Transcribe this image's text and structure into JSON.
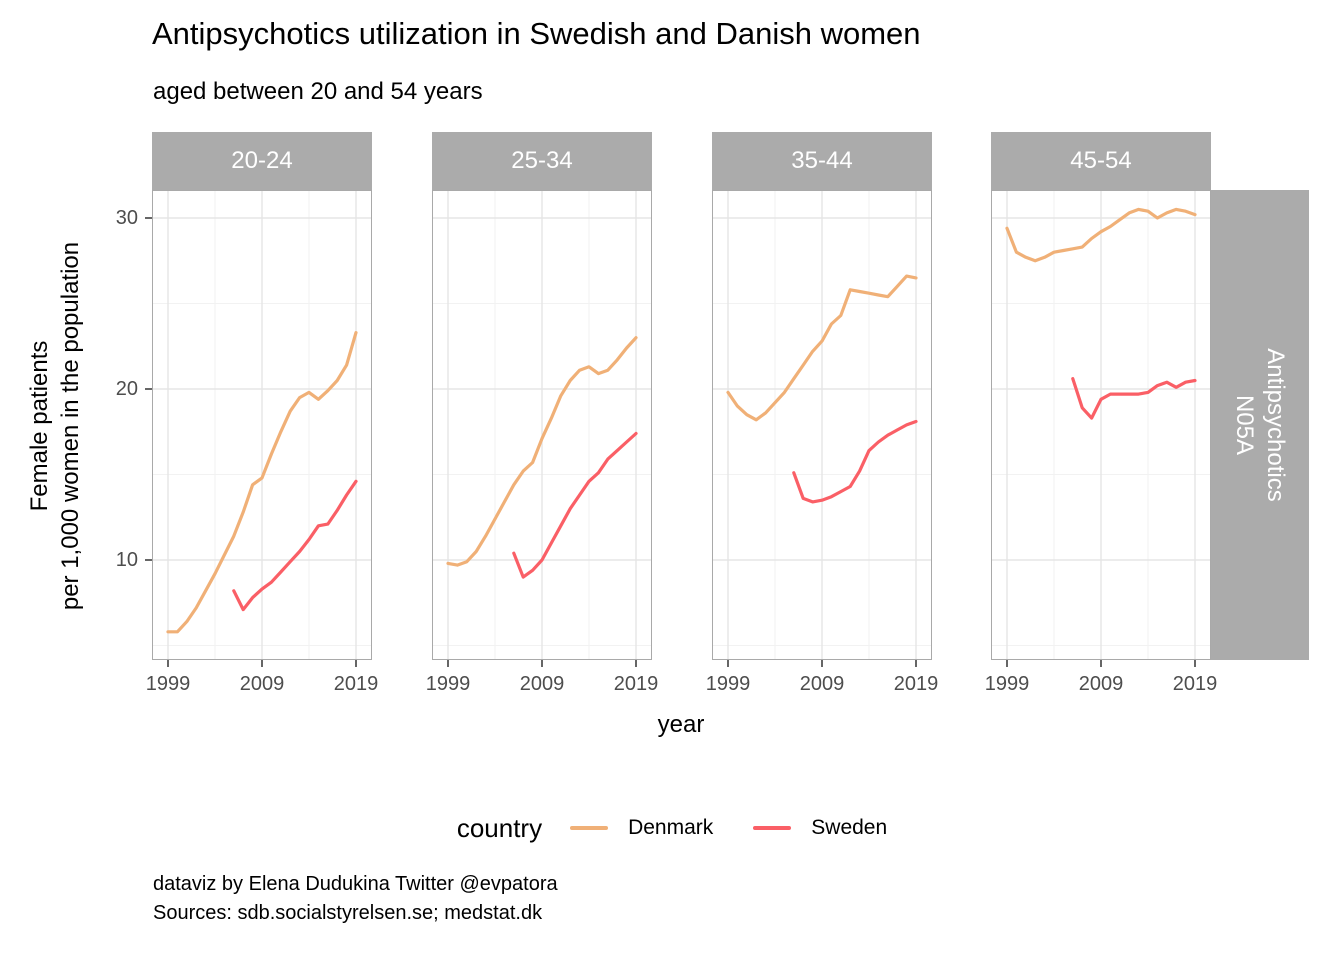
{
  "title": "Antipsychotics utilization in Swedish and Danish women",
  "subtitle": "aged between 20 and 54 years",
  "y_axis_label_line1": "Female patients",
  "y_axis_label_line2": "per 1,000 women in the population",
  "x_axis_label": "year",
  "right_strip": {
    "line1": "Antipsychotics",
    "line2": "N05A"
  },
  "legend": {
    "title": "country",
    "items": [
      {
        "label": "Denmark",
        "color": "#F0B077"
      },
      {
        "label": "Sweden",
        "color": "#FA5F66"
      }
    ]
  },
  "caption_line1": "dataviz by Elena Dudukina Twitter @evpatora",
  "caption_line2": "Sources: sdb.socialstyrelsen.se; medstat.dk",
  "colors": {
    "denmark": "#F0B077",
    "sweden": "#FA5F66",
    "strip_bg": "#ABABAB",
    "strip_text": "#FFFFFF",
    "panel_border": "#A9A9A9",
    "grid_major": "#E5E5E5",
    "grid_minor": "#F2F2F2",
    "tick_text": "#4D4D4D",
    "tick_mark": "#666666"
  },
  "chart_data": {
    "type": "line",
    "title": "Antipsychotics utilization in Swedish and Danish women aged between 20 and 54 years",
    "xlabel": "year",
    "ylabel": "Female patients per 1,000 women in the population",
    "x_range": [
      1999,
      2019
    ],
    "ylim": [
      4.2,
      31.5
    ],
    "x_major_ticks": [
      1999,
      2009,
      2019
    ],
    "x_minor_ticks": [
      2004,
      2014
    ],
    "y_major_ticks": [
      10,
      20,
      30
    ],
    "y_minor_ticks": [
      5,
      15,
      25
    ],
    "grid": true,
    "legend_position": "bottom",
    "facet_label_right": "Antipsychotics N05A",
    "facets": [
      {
        "label": "20-24",
        "series": [
          {
            "name": "Denmark",
            "color": "#F0B077",
            "x_start": 1999,
            "values": [
              5.8,
              5.8,
              6.4,
              7.2,
              8.2,
              9.2,
              10.3,
              11.4,
              12.8,
              14.4,
              14.8,
              16.2,
              17.5,
              18.7,
              19.5,
              19.8,
              19.4,
              19.9,
              20.5,
              21.4,
              23.3
            ]
          },
          {
            "name": "Sweden",
            "color": "#FA5F66",
            "x_start": 2006,
            "values": [
              8.2,
              7.1,
              7.8,
              8.3,
              8.7,
              9.3,
              9.9,
              10.5,
              11.2,
              12.0,
              12.1,
              12.9,
              13.8,
              14.6
            ]
          }
        ]
      },
      {
        "label": "25-34",
        "series": [
          {
            "name": "Denmark",
            "color": "#F0B077",
            "x_start": 1999,
            "values": [
              9.8,
              9.7,
              9.9,
              10.5,
              11.4,
              12.4,
              13.4,
              14.4,
              15.2,
              15.7,
              17.1,
              18.3,
              19.6,
              20.5,
              21.1,
              21.3,
              20.9,
              21.1,
              21.7,
              22.4,
              23.0
            ]
          },
          {
            "name": "Sweden",
            "color": "#FA5F66",
            "x_start": 2006,
            "values": [
              10.4,
              9.0,
              9.4,
              10.0,
              11.0,
              12.0,
              13.0,
              13.8,
              14.6,
              15.1,
              15.9,
              16.4,
              16.9,
              17.4
            ]
          }
        ]
      },
      {
        "label": "35-44",
        "series": [
          {
            "name": "Denmark",
            "color": "#F0B077",
            "x_start": 1999,
            "values": [
              19.8,
              19.0,
              18.5,
              18.2,
              18.6,
              19.2,
              19.8,
              20.6,
              21.4,
              22.2,
              22.8,
              23.8,
              24.3,
              25.8,
              25.7,
              25.6,
              25.5,
              25.4,
              26.0,
              26.6,
              26.5
            ]
          },
          {
            "name": "Sweden",
            "color": "#FA5F66",
            "x_start": 2006,
            "values": [
              15.1,
              13.6,
              13.4,
              13.5,
              13.7,
              14.0,
              14.3,
              15.2,
              16.4,
              16.9,
              17.3,
              17.6,
              17.9,
              18.1
            ]
          }
        ]
      },
      {
        "label": "45-54",
        "series": [
          {
            "name": "Denmark",
            "color": "#F0B077",
            "x_start": 1999,
            "values": [
              29.4,
              28.0,
              27.7,
              27.5,
              27.7,
              28.0,
              28.1,
              28.2,
              28.3,
              28.8,
              29.2,
              29.5,
              29.9,
              30.3,
              30.5,
              30.4,
              30.0,
              30.3,
              30.5,
              30.4,
              30.2
            ]
          },
          {
            "name": "Sweden",
            "color": "#FA5F66",
            "x_start": 2006,
            "values": [
              20.6,
              18.9,
              18.3,
              19.4,
              19.7,
              19.7,
              19.7,
              19.7,
              19.8,
              20.2,
              20.4,
              20.1,
              20.4,
              20.5
            ]
          }
        ]
      }
    ]
  }
}
